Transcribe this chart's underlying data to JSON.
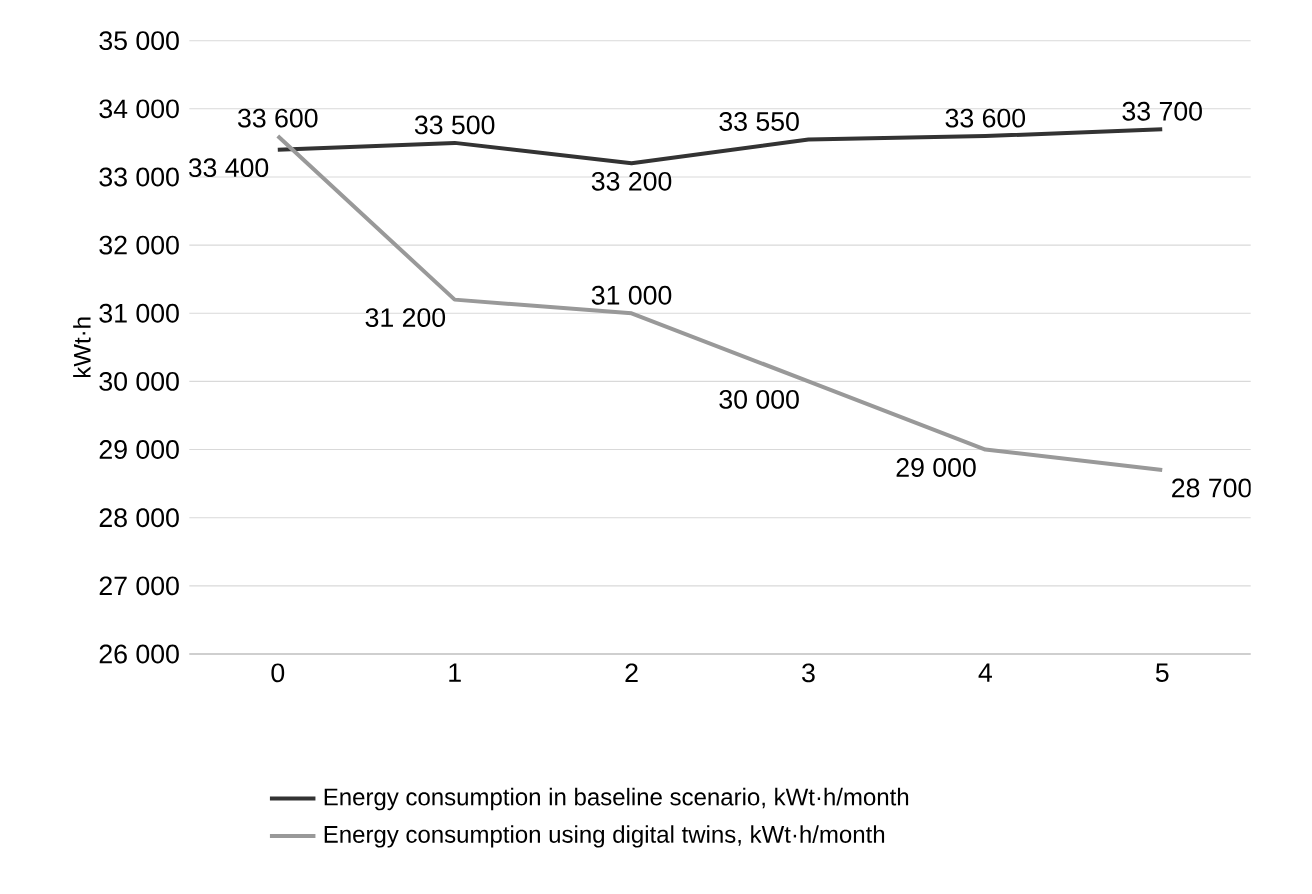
{
  "chart_data": {
    "type": "line",
    "ylabel": "kWt·h",
    "categories": [
      "0",
      "1",
      "2",
      "3",
      "4",
      "5"
    ],
    "series": [
      {
        "name": "Energy consumption in baseline scenario, kWt·h/month",
        "color": "#333333",
        "values": [
          33400,
          33500,
          33200,
          33550,
          33600,
          33700
        ],
        "value_labels": [
          "33 400",
          "33 500",
          "33 200",
          "33 550",
          "33 600",
          "33 700"
        ]
      },
      {
        "name": "Energy consumption using digital twins, kWt·h/month",
        "color": "#999999",
        "values": [
          33600,
          31200,
          31000,
          30000,
          29000,
          28700
        ],
        "value_labels": [
          "33 600",
          "31 200",
          "31 000",
          "30 000",
          "29 000",
          "28 700"
        ]
      }
    ],
    "ylim": [
      26000,
      35000
    ],
    "yticks": [
      {
        "value": 26000,
        "label": "26 000"
      },
      {
        "value": 27000,
        "label": "27 000"
      },
      {
        "value": 28000,
        "label": "28 000"
      },
      {
        "value": 29000,
        "label": "29 000"
      },
      {
        "value": 30000,
        "label": "30 000"
      },
      {
        "value": 31000,
        "label": "31 000"
      },
      {
        "value": 32000,
        "label": "32 000"
      },
      {
        "value": 33000,
        "label": "33 000"
      },
      {
        "value": 34000,
        "label": "34 000"
      },
      {
        "value": 35000,
        "label": "35 000"
      }
    ],
    "grid": "y",
    "legend": "bottom",
    "marker": "none",
    "line_style": "solid"
  }
}
